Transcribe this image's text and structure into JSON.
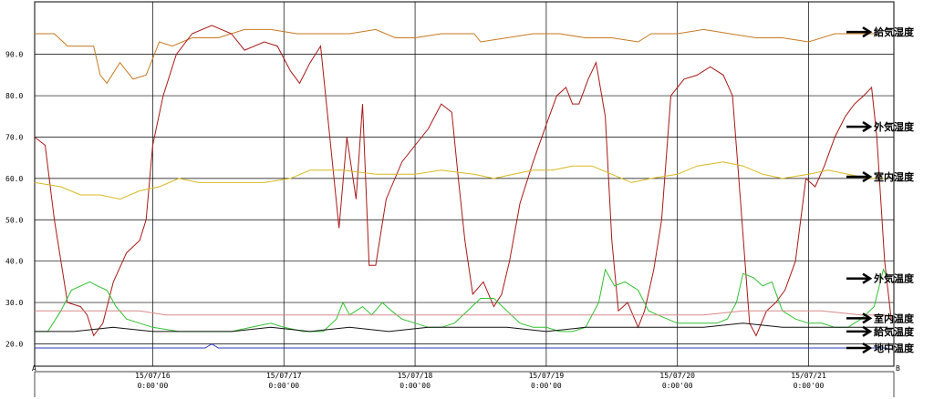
{
  "chart_data": {
    "type": "line",
    "ylim": [
      14.6,
      102.7
    ],
    "yticks": [
      "20.0",
      "30.0",
      "40.0",
      "50.0",
      "60.0",
      "70.0",
      "80.0",
      "90.0"
    ],
    "yticks_values": [
      20,
      30,
      40,
      50,
      60,
      70,
      80,
      90
    ],
    "xticks": [
      {
        "date": "15/07/16",
        "time": "0:00'00",
        "pos": 1
      },
      {
        "date": "15/07/17",
        "time": "0:00'00",
        "pos": 2
      },
      {
        "date": "15/07/18",
        "time": "0:00'00",
        "pos": 3
      },
      {
        "date": "15/07/19",
        "time": "0:00'00",
        "pos": 4
      },
      {
        "date": "15/07/20",
        "time": "0:00'00",
        "pos": 5
      },
      {
        "date": "15/07/21",
        "time": "0:00'00",
        "pos": 6
      }
    ],
    "xlim": [
      0.1,
      6.65
    ],
    "corner_left": "A",
    "corner_right": "B",
    "grid": true,
    "series": [
      {
        "name": "給気湿度",
        "color": "#c87820",
        "label_y": 95.4,
        "points": [
          [
            0.1,
            95
          ],
          [
            0.25,
            95
          ],
          [
            0.35,
            92
          ],
          [
            0.55,
            92
          ],
          [
            0.6,
            85
          ],
          [
            0.65,
            83
          ],
          [
            0.75,
            88
          ],
          [
            0.85,
            84
          ],
          [
            0.95,
            85
          ],
          [
            1.05,
            93
          ],
          [
            1.15,
            92
          ],
          [
            1.3,
            94
          ],
          [
            1.5,
            94
          ],
          [
            1.7,
            96
          ],
          [
            1.9,
            96
          ],
          [
            2.1,
            95
          ],
          [
            2.3,
            95
          ],
          [
            2.5,
            95
          ],
          [
            2.7,
            96
          ],
          [
            2.85,
            94
          ],
          [
            3.0,
            94
          ],
          [
            3.2,
            95
          ],
          [
            3.45,
            95
          ],
          [
            3.5,
            93
          ],
          [
            3.7,
            94
          ],
          [
            3.9,
            95
          ],
          [
            4.1,
            95
          ],
          [
            4.3,
            94
          ],
          [
            4.5,
            94
          ],
          [
            4.7,
            93
          ],
          [
            4.8,
            95
          ],
          [
            5.0,
            95
          ],
          [
            5.2,
            96
          ],
          [
            5.4,
            95
          ],
          [
            5.6,
            94
          ],
          [
            5.8,
            94
          ],
          [
            6.0,
            93
          ],
          [
            6.2,
            95
          ],
          [
            6.4,
            95
          ],
          [
            6.5,
            95
          ]
        ]
      },
      {
        "name": "外気湿度",
        "color": "#a81818",
        "label_y": 72.5,
        "points": [
          [
            0.1,
            70
          ],
          [
            0.18,
            68
          ],
          [
            0.25,
            50
          ],
          [
            0.35,
            30
          ],
          [
            0.45,
            29
          ],
          [
            0.5,
            27
          ],
          [
            0.55,
            22
          ],
          [
            0.62,
            25
          ],
          [
            0.7,
            35
          ],
          [
            0.8,
            42
          ],
          [
            0.9,
            45
          ],
          [
            0.95,
            50
          ],
          [
            1.0,
            68
          ],
          [
            1.08,
            80
          ],
          [
            1.18,
            90
          ],
          [
            1.3,
            95
          ],
          [
            1.45,
            97
          ],
          [
            1.6,
            95
          ],
          [
            1.7,
            91
          ],
          [
            1.85,
            93
          ],
          [
            1.95,
            92
          ],
          [
            2.05,
            86
          ],
          [
            2.12,
            83
          ],
          [
            2.2,
            88
          ],
          [
            2.28,
            92
          ],
          [
            2.35,
            70
          ],
          [
            2.42,
            48
          ],
          [
            2.48,
            70
          ],
          [
            2.55,
            55
          ],
          [
            2.6,
            78
          ],
          [
            2.65,
            39
          ],
          [
            2.7,
            39
          ],
          [
            2.78,
            55
          ],
          [
            2.9,
            64
          ],
          [
            3.0,
            68
          ],
          [
            3.1,
            72
          ],
          [
            3.2,
            78
          ],
          [
            3.28,
            76
          ],
          [
            3.33,
            60
          ],
          [
            3.38,
            45
          ],
          [
            3.44,
            32
          ],
          [
            3.52,
            35
          ],
          [
            3.6,
            29
          ],
          [
            3.66,
            32
          ],
          [
            3.72,
            40
          ],
          [
            3.8,
            54
          ],
          [
            3.9,
            64
          ],
          [
            4.0,
            73
          ],
          [
            4.08,
            80
          ],
          [
            4.15,
            82
          ],
          [
            4.2,
            78
          ],
          [
            4.25,
            78
          ],
          [
            4.32,
            84
          ],
          [
            4.38,
            88
          ],
          [
            4.45,
            75
          ],
          [
            4.5,
            45
          ],
          [
            4.55,
            28
          ],
          [
            4.62,
            30
          ],
          [
            4.7,
            24
          ],
          [
            4.75,
            28
          ],
          [
            4.82,
            38
          ],
          [
            4.88,
            50
          ],
          [
            4.95,
            80
          ],
          [
            5.05,
            84
          ],
          [
            5.15,
            85
          ],
          [
            5.25,
            87
          ],
          [
            5.35,
            85
          ],
          [
            5.42,
            80
          ],
          [
            5.48,
            55
          ],
          [
            5.55,
            25
          ],
          [
            5.6,
            22
          ],
          [
            5.68,
            28
          ],
          [
            5.75,
            30
          ],
          [
            5.82,
            33
          ],
          [
            5.9,
            40
          ],
          [
            5.98,
            60
          ],
          [
            6.05,
            58
          ],
          [
            6.12,
            63
          ],
          [
            6.2,
            70
          ],
          [
            6.28,
            75
          ],
          [
            6.35,
            78
          ],
          [
            6.42,
            80
          ],
          [
            6.48,
            82
          ],
          [
            6.52,
            70
          ],
          [
            6.58,
            40
          ],
          [
            6.63,
            26
          ]
        ]
      },
      {
        "name": "室内湿度",
        "color": "#d8b820",
        "label_y": 60.4,
        "points": [
          [
            0.1,
            59
          ],
          [
            0.3,
            58
          ],
          [
            0.45,
            56
          ],
          [
            0.6,
            56
          ],
          [
            0.75,
            55
          ],
          [
            0.9,
            57
          ],
          [
            1.05,
            58
          ],
          [
            1.2,
            60
          ],
          [
            1.35,
            59
          ],
          [
            1.6,
            59
          ],
          [
            1.85,
            59
          ],
          [
            2.05,
            60
          ],
          [
            2.2,
            62
          ],
          [
            2.45,
            62
          ],
          [
            2.7,
            61
          ],
          [
            3.0,
            61
          ],
          [
            3.2,
            62
          ],
          [
            3.45,
            61
          ],
          [
            3.6,
            60
          ],
          [
            3.75,
            61
          ],
          [
            3.9,
            62
          ],
          [
            4.05,
            62
          ],
          [
            4.2,
            63
          ],
          [
            4.35,
            63
          ],
          [
            4.5,
            61
          ],
          [
            4.65,
            59
          ],
          [
            4.8,
            60
          ],
          [
            5.0,
            61
          ],
          [
            5.15,
            63
          ],
          [
            5.35,
            64
          ],
          [
            5.5,
            63
          ],
          [
            5.65,
            61
          ],
          [
            5.8,
            60
          ],
          [
            6.0,
            61
          ],
          [
            6.15,
            62
          ],
          [
            6.3,
            61
          ],
          [
            6.45,
            60
          ],
          [
            6.6,
            60
          ]
        ]
      },
      {
        "name": "外気温度",
        "color": "#30c030",
        "label_y": 35.8,
        "points": [
          [
            0.1,
            23
          ],
          [
            0.2,
            23
          ],
          [
            0.3,
            28
          ],
          [
            0.38,
            33
          ],
          [
            0.45,
            34
          ],
          [
            0.52,
            35
          ],
          [
            0.58,
            34
          ],
          [
            0.65,
            33
          ],
          [
            0.72,
            29
          ],
          [
            0.8,
            26
          ],
          [
            0.9,
            25
          ],
          [
            1.0,
            24
          ],
          [
            1.2,
            23
          ],
          [
            1.4,
            23
          ],
          [
            1.6,
            23
          ],
          [
            1.75,
            24
          ],
          [
            1.9,
            25
          ],
          [
            2.0,
            24
          ],
          [
            2.15,
            23
          ],
          [
            2.3,
            23
          ],
          [
            2.4,
            26
          ],
          [
            2.45,
            30
          ],
          [
            2.5,
            27
          ],
          [
            2.55,
            28
          ],
          [
            2.6,
            29
          ],
          [
            2.67,
            27
          ],
          [
            2.75,
            30
          ],
          [
            2.82,
            28
          ],
          [
            2.9,
            26
          ],
          [
            3.0,
            25
          ],
          [
            3.1,
            24
          ],
          [
            3.2,
            24
          ],
          [
            3.3,
            25
          ],
          [
            3.4,
            28
          ],
          [
            3.5,
            31
          ],
          [
            3.6,
            31
          ],
          [
            3.7,
            28
          ],
          [
            3.8,
            25
          ],
          [
            3.9,
            24
          ],
          [
            4.0,
            24
          ],
          [
            4.1,
            23
          ],
          [
            4.2,
            23
          ],
          [
            4.3,
            24
          ],
          [
            4.4,
            30
          ],
          [
            4.45,
            38
          ],
          [
            4.52,
            34
          ],
          [
            4.6,
            35
          ],
          [
            4.7,
            33
          ],
          [
            4.78,
            28
          ],
          [
            4.85,
            27
          ],
          [
            5.0,
            25
          ],
          [
            5.15,
            25
          ],
          [
            5.3,
            25
          ],
          [
            5.38,
            26
          ],
          [
            5.45,
            30
          ],
          [
            5.5,
            37
          ],
          [
            5.58,
            36
          ],
          [
            5.65,
            34
          ],
          [
            5.72,
            35
          ],
          [
            5.8,
            28
          ],
          [
            5.9,
            26
          ],
          [
            6.0,
            25
          ],
          [
            6.1,
            25
          ],
          [
            6.2,
            24
          ],
          [
            6.3,
            24
          ],
          [
            6.4,
            26
          ],
          [
            6.5,
            29
          ],
          [
            6.57,
            38
          ],
          [
            6.6,
            36
          ]
        ]
      },
      {
        "name": "室内温度",
        "color": "#d88a8a",
        "label_y": 26.2,
        "points": [
          [
            0.1,
            28
          ],
          [
            0.3,
            28
          ],
          [
            0.5,
            28
          ],
          [
            0.7,
            28
          ],
          [
            0.9,
            28
          ],
          [
            1.1,
            27
          ],
          [
            1.3,
            27
          ],
          [
            1.6,
            27
          ],
          [
            1.9,
            27
          ],
          [
            2.2,
            27
          ],
          [
            2.5,
            27
          ],
          [
            2.8,
            27
          ],
          [
            3.1,
            27
          ],
          [
            3.4,
            27
          ],
          [
            3.7,
            27
          ],
          [
            4.0,
            27
          ],
          [
            4.3,
            27
          ],
          [
            4.6,
            27
          ],
          [
            4.9,
            27
          ],
          [
            5.2,
            27
          ],
          [
            5.5,
            28
          ],
          [
            5.8,
            28
          ],
          [
            6.1,
            28
          ],
          [
            6.4,
            27
          ],
          [
            6.6,
            27
          ]
        ]
      },
      {
        "name": "給気温度",
        "color": "#111111",
        "label_y": 23.0,
        "points": [
          [
            0.1,
            23
          ],
          [
            0.4,
            23
          ],
          [
            0.7,
            24
          ],
          [
            1.0,
            23
          ],
          [
            1.3,
            23
          ],
          [
            1.6,
            23
          ],
          [
            1.9,
            24
          ],
          [
            2.2,
            23
          ],
          [
            2.5,
            24
          ],
          [
            2.8,
            23
          ],
          [
            3.1,
            24
          ],
          [
            3.4,
            24
          ],
          [
            3.7,
            24
          ],
          [
            4.0,
            23
          ],
          [
            4.3,
            24
          ],
          [
            4.6,
            24
          ],
          [
            4.9,
            24
          ],
          [
            5.2,
            24
          ],
          [
            5.5,
            25
          ],
          [
            5.8,
            24
          ],
          [
            6.1,
            24
          ],
          [
            6.4,
            24
          ],
          [
            6.6,
            24
          ]
        ]
      },
      {
        "name": "地中温度",
        "color": "#2838c0",
        "label_y": 19.0,
        "points": [
          [
            0.1,
            19
          ],
          [
            0.6,
            19
          ],
          [
            1.2,
            19
          ],
          [
            1.4,
            19
          ],
          [
            1.45,
            20
          ],
          [
            1.5,
            19
          ],
          [
            2.0,
            19
          ],
          [
            2.6,
            19
          ],
          [
            3.2,
            19
          ],
          [
            3.8,
            19
          ],
          [
            4.4,
            19
          ],
          [
            5.0,
            19
          ],
          [
            5.6,
            19
          ],
          [
            6.2,
            19
          ],
          [
            6.6,
            19
          ]
        ]
      }
    ]
  }
}
